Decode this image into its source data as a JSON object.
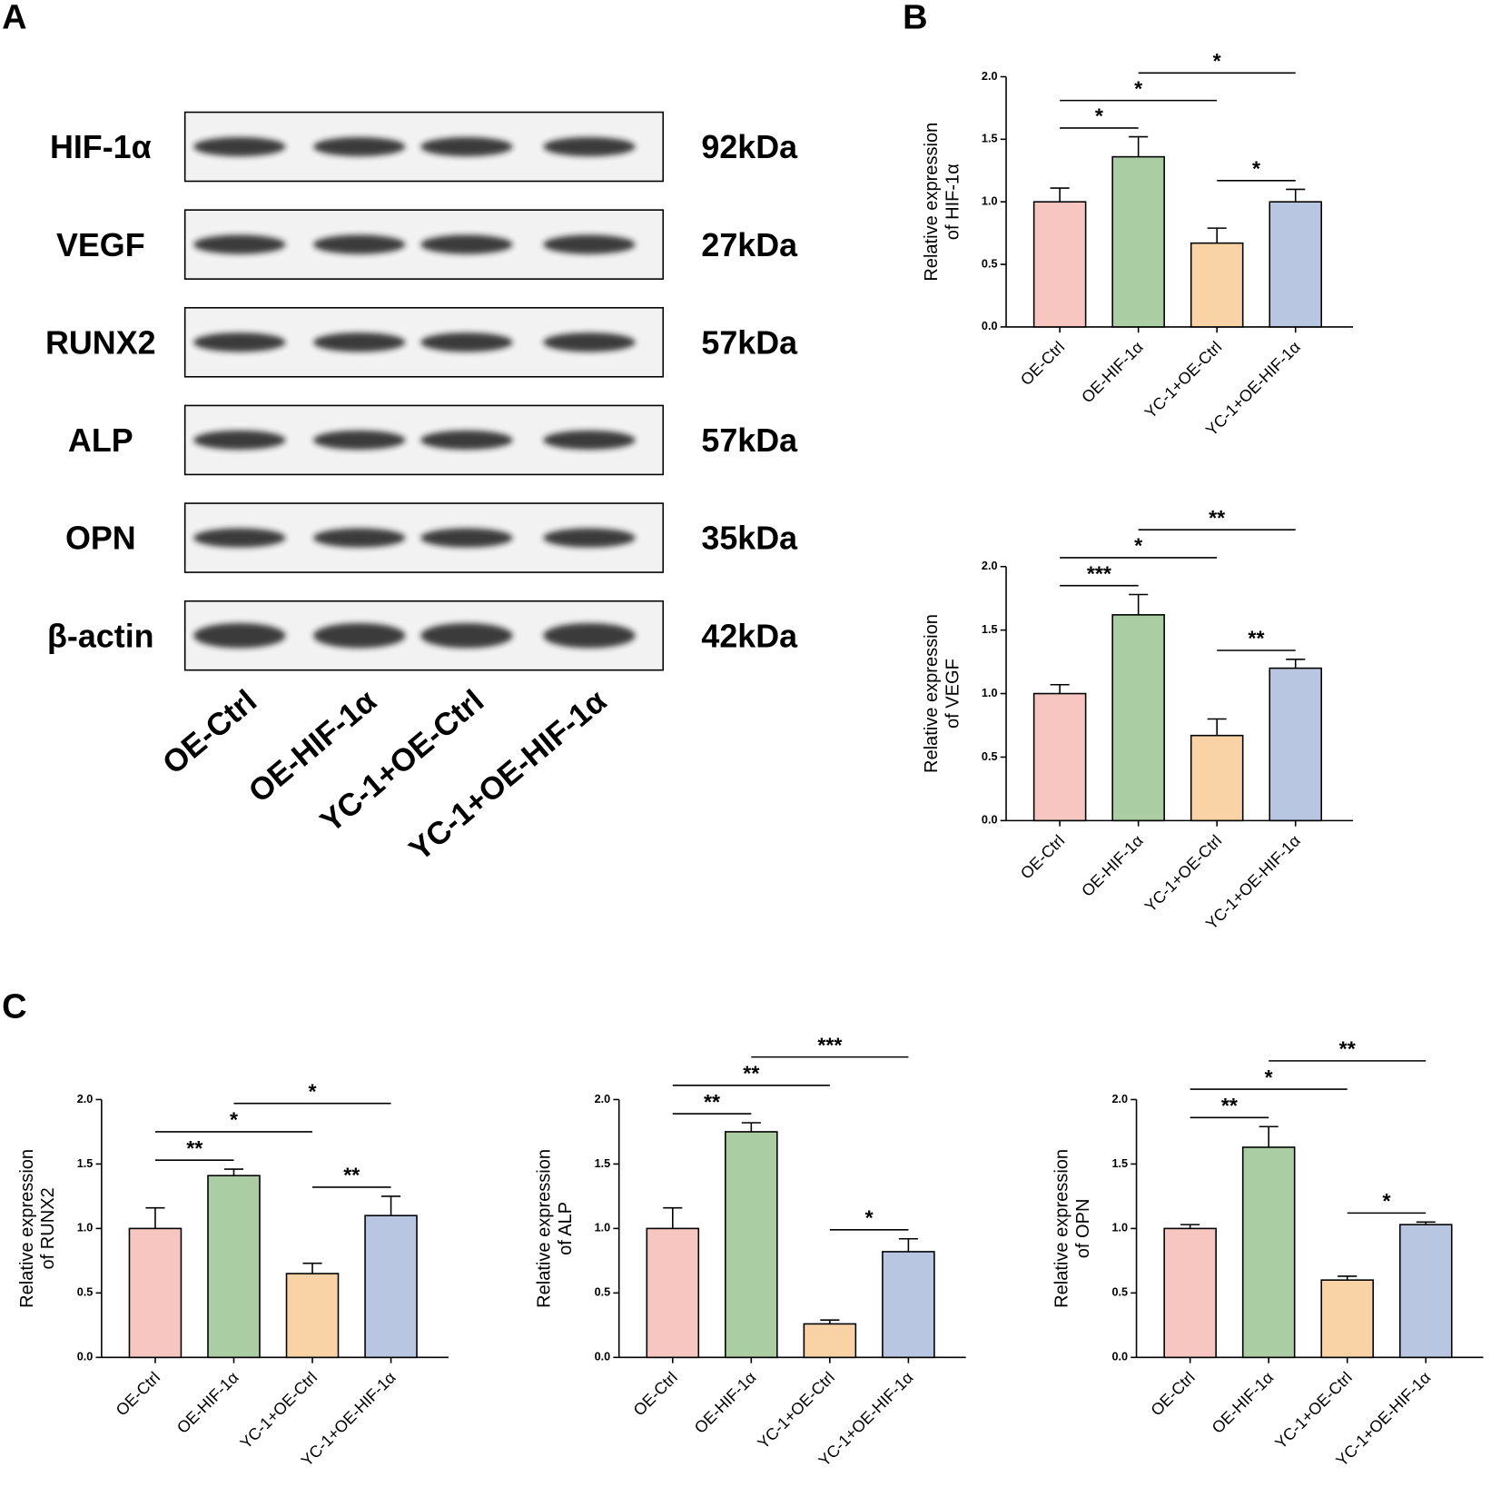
{
  "panels": [
    "A",
    "B",
    "C"
  ],
  "blot": {
    "rows": [
      {
        "protein": "HIF-1α",
        "size": "92kDa"
      },
      {
        "protein": "VEGF",
        "size": "27kDa"
      },
      {
        "protein": "RUNX2",
        "size": "57kDa"
      },
      {
        "protein": "ALP",
        "size": "57kDa"
      },
      {
        "protein": "OPN",
        "size": "35kDa"
      },
      {
        "protein": "β-actin",
        "size": "42kDa"
      }
    ],
    "lanes": [
      "OE-Ctrl",
      "OE-HIF-1α",
      "YC-1+OE-Ctrl",
      "YC-1+OE-HIF-1α"
    ]
  },
  "chart_data": [
    {
      "type": "bar",
      "ylabel": [
        "Relative expression",
        "of HIF-1α"
      ],
      "categories": [
        "OE-Ctrl",
        "OE-HIF-1α",
        "YC-1+OE-Ctrl",
        "YC-1+OE-HIF-1α"
      ],
      "values": [
        1.0,
        1.36,
        0.67,
        1.0
      ],
      "errors": [
        0.11,
        0.16,
        0.12,
        0.1
      ],
      "colors": [
        "#f7c6c1",
        "#aacda4",
        "#f9d3a6",
        "#b8c6e1"
      ],
      "ylim": [
        0,
        2
      ],
      "yticks": [
        {
          "value": 0,
          "label": "0.0"
        },
        0.5,
        {
          "value": 1,
          "label": "1.0"
        },
        1.5,
        {
          "value": 2,
          "label": "2.0"
        }
      ],
      "annotations": [
        {
          "text": "*",
          "groups": [
            0,
            1
          ]
        },
        {
          "text": "*",
          "groups": [
            0,
            2
          ]
        },
        {
          "text": "*",
          "groups": [
            1,
            3
          ]
        },
        {
          "text": "*",
          "groups": [
            2,
            3
          ]
        }
      ]
    },
    {
      "type": "bar",
      "ylabel": [
        "Relative expression",
        "of VEGF"
      ],
      "categories": [
        "OE-Ctrl",
        "OE-HIF-1α",
        "YC-1+OE-Ctrl",
        "YC-1+OE-HIF-1α"
      ],
      "values": [
        1.0,
        1.62,
        0.67,
        1.2
      ],
      "errors": [
        0.07,
        0.16,
        0.13,
        0.07
      ],
      "colors": [
        "#f7c6c1",
        "#aacda4",
        "#f9d3a6",
        "#b8c6e1"
      ],
      "ylim": [
        0,
        2
      ],
      "yticks": [
        {
          "value": 0,
          "label": "0.0"
        },
        0.5,
        {
          "value": 1,
          "label": "1.0"
        },
        1.5,
        {
          "value": 2,
          "label": "2.0"
        }
      ],
      "annotations": [
        {
          "text": "***",
          "groups": [
            0,
            1
          ]
        },
        {
          "text": "*",
          "groups": [
            0,
            2
          ]
        },
        {
          "text": "**",
          "groups": [
            1,
            3
          ]
        },
        {
          "text": "**",
          "groups": [
            2,
            3
          ]
        }
      ]
    },
    {
      "type": "bar",
      "ylabel": [
        "Relative expression",
        "of RUNX2"
      ],
      "categories": [
        "OE-Ctrl",
        "OE-HIF-1α",
        "YC-1+OE-Ctrl",
        "YC-1+OE-HIF-1α"
      ],
      "values": [
        1.0,
        1.41,
        0.65,
        1.1
      ],
      "errors": [
        0.16,
        0.05,
        0.08,
        0.15
      ],
      "colors": [
        "#f7c6c1",
        "#aacda4",
        "#f9d3a6",
        "#b8c6e1"
      ],
      "ylim": [
        0,
        2
      ],
      "yticks": [
        {
          "value": 0,
          "label": "0.0"
        },
        0.5,
        {
          "value": 1,
          "label": "1.0"
        },
        1.5,
        {
          "value": 2,
          "label": "2.0"
        }
      ],
      "annotations": [
        {
          "text": "**",
          "groups": [
            0,
            1
          ]
        },
        {
          "text": "*",
          "groups": [
            0,
            2
          ]
        },
        {
          "text": "*",
          "groups": [
            1,
            3
          ]
        },
        {
          "text": "**",
          "groups": [
            2,
            3
          ]
        }
      ]
    },
    {
      "type": "bar",
      "ylabel": [
        "Relative expression",
        "of ALP"
      ],
      "categories": [
        "OE-Ctrl",
        "OE-HIF-1α",
        "YC-1+OE-Ctrl",
        "YC-1+OE-HIF-1α"
      ],
      "values": [
        1.0,
        1.75,
        0.26,
        0.82
      ],
      "errors": [
        0.16,
        0.07,
        0.03,
        0.1
      ],
      "colors": [
        "#f7c6c1",
        "#aacda4",
        "#f9d3a6",
        "#b8c6e1"
      ],
      "ylim": [
        0,
        2
      ],
      "yticks": [
        {
          "value": 0,
          "label": "0.0"
        },
        0.5,
        {
          "value": 1,
          "label": "1.0"
        },
        1.5,
        {
          "value": 2,
          "label": "2.0"
        }
      ],
      "annotations": [
        {
          "text": "**",
          "groups": [
            0,
            1
          ]
        },
        {
          "text": "**",
          "groups": [
            0,
            2
          ]
        },
        {
          "text": "***",
          "groups": [
            1,
            3
          ]
        },
        {
          "text": "*",
          "groups": [
            2,
            3
          ]
        }
      ]
    },
    {
      "type": "bar",
      "ylabel": [
        "Relative expression",
        "of OPN"
      ],
      "categories": [
        "OE-Ctrl",
        "OE-HIF-1α",
        "YC-1+OE-Ctrl",
        "YC-1+OE-HIF-1α"
      ],
      "values": [
        1.0,
        1.63,
        0.6,
        1.03
      ],
      "errors": [
        0.03,
        0.16,
        0.03,
        0.02
      ],
      "colors": [
        "#f7c6c1",
        "#aacda4",
        "#f9d3a6",
        "#b8c6e1"
      ],
      "ylim": [
        0,
        2
      ],
      "yticks": [
        {
          "value": 0,
          "label": "0.0"
        },
        0.5,
        {
          "value": 1,
          "label": "1.0"
        },
        1.5,
        {
          "value": 2,
          "label": "2.0"
        }
      ],
      "annotations": [
        {
          "text": "**",
          "groups": [
            0,
            1
          ]
        },
        {
          "text": "*",
          "groups": [
            0,
            2
          ]
        },
        {
          "text": "**",
          "groups": [
            1,
            3
          ]
        },
        {
          "text": "*",
          "groups": [
            2,
            3
          ]
        }
      ]
    }
  ]
}
